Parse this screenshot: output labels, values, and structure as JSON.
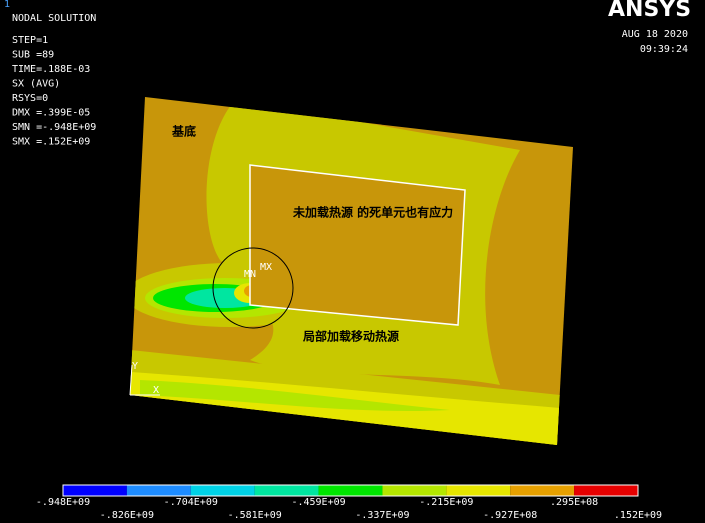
{
  "header": {
    "title": "NODAL SOLUTION",
    "window_number": "1",
    "lines": [
      "STEP=1",
      "SUB =89",
      "TIME=.188E-03",
      "SX       (AVG)",
      "RSYS=0",
      "DMX =.399E-05",
      "SMN =-.948E+09",
      "SMX =.152E+09"
    ]
  },
  "logo": "ANSYS",
  "date": "AUG 18 2020",
  "time": "09:39:24",
  "annotations": {
    "substrate": "基底",
    "dead_elements": "未加载热源 的死单元也有应力",
    "heat_source": "局部加载移动热源"
  },
  "markers": {
    "max": "MX",
    "min": "MN",
    "x_axis": "X",
    "y_axis": "Y"
  },
  "legend": {
    "colors": [
      "#0000ff",
      "#1e8cff",
      "#00d2e6",
      "#00e6a0",
      "#00e600",
      "#b4e600",
      "#e6e600",
      "#e6a000",
      "#e60000"
    ],
    "labels": [
      "-.948E+09",
      "-.826E+09",
      "-.704E+09",
      "-.581E+09",
      "-.459E+09",
      "-.337E+09",
      "-.215E+09",
      "-.927E+08",
      ".295E+08",
      ".152E+09"
    ]
  }
}
